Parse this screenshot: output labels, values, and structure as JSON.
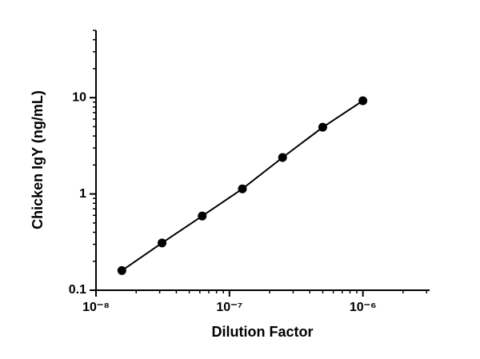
{
  "chart_data": {
    "type": "scatter",
    "log_x": true,
    "log_y": true,
    "line": true,
    "x_label": "Dilution Factor",
    "y_label": "Chicken IgY (ng/mL)",
    "x": [
      1.5625e-08,
      3.125e-08,
      6.25e-08,
      1.25e-07,
      2.5e-07,
      5e-07,
      1e-06
    ],
    "series": [
      {
        "color": "#000000",
        "values": [
          0.16,
          0.31,
          0.59,
          1.13,
          2.39,
          4.93,
          9.3
        ]
      }
    ],
    "xlim": [
      1e-08,
      3.16e-06
    ],
    "xticks": [
      {
        "value": 1e-08,
        "label": "10⁻⁸"
      },
      {
        "value": 1e-07,
        "label": "10⁻⁷"
      },
      {
        "value": 1e-06,
        "label": "10⁻⁶"
      }
    ],
    "xminorticks": [
      2e-08,
      3e-08,
      4e-08,
      5e-08,
      6e-08,
      7e-08,
      8e-08,
      9e-08,
      2e-07,
      3e-07,
      4e-07,
      5e-07,
      6e-07,
      7e-07,
      8e-07,
      9e-07,
      2e-06,
      3e-06
    ],
    "ylim": [
      0.1,
      50
    ],
    "yticks": [
      0.1,
      1,
      10
    ],
    "yminorticks": [
      0.2,
      0.3,
      0.4,
      0.5,
      0.6,
      0.7,
      0.8,
      0.9,
      2,
      3,
      4,
      5,
      6,
      7,
      8,
      9,
      20,
      30,
      40,
      50
    ]
  }
}
